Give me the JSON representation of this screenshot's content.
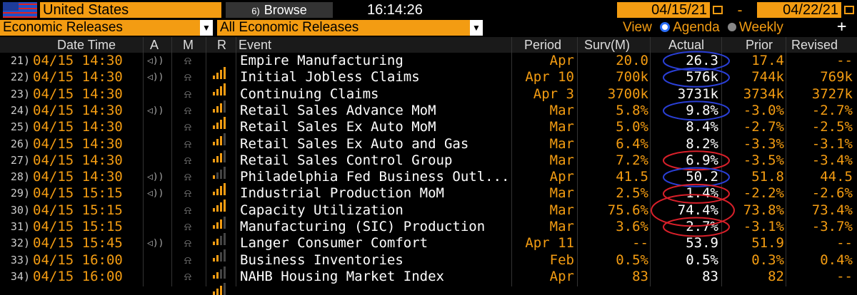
{
  "top": {
    "country": "United States",
    "browse_label": "Browse",
    "browse_icon": "6)",
    "time": "16:14:26",
    "date_from": "04/15/21",
    "date_sep": "-",
    "date_to": "04/22/21"
  },
  "filters": {
    "category": "Economic Releases",
    "scope": "All Economic Releases",
    "view_label": "View",
    "agenda_label": "Agenda",
    "weekly_label": "Weekly",
    "plus": "+"
  },
  "columns": {
    "datetime": "Date Time",
    "a": "A",
    "m": "M",
    "r": "R",
    "event": "Event",
    "period": "Period",
    "surv": "Surv(M)",
    "actual": "Actual",
    "prior": "Prior",
    "revised": "Revised"
  },
  "colors": {
    "accent": "#f39c12",
    "circle_blue": "#2a3fd6",
    "circle_red": "#d8202a"
  },
  "rows": [
    {
      "num": "21)",
      "datetime": "04/15 14:30",
      "alert": true,
      "rel": 4,
      "event": "Empire Manufacturing",
      "period": "Apr",
      "surv": "20.0",
      "actual": "26.3",
      "prior": "17.4",
      "revised": "--",
      "circle": "blue"
    },
    {
      "num": "22)",
      "datetime": "04/15 14:30",
      "alert": true,
      "rel": 4,
      "event": "Initial Jobless Claims",
      "period": "Apr 10",
      "surv": "700k",
      "actual": "576k",
      "prior": "744k",
      "revised": "769k",
      "circle": "blue"
    },
    {
      "num": "23)",
      "datetime": "04/15 14:30",
      "alert": false,
      "rel": 3,
      "event": "Continuing Claims",
      "period": "Apr 3",
      "surv": "3700k",
      "actual": "3731k",
      "prior": "3734k",
      "revised": "3727k",
      "circle": ""
    },
    {
      "num": "24)",
      "datetime": "04/15 14:30",
      "alert": true,
      "rel": 4,
      "event": "Retail Sales Advance MoM",
      "period": "Mar",
      "surv": "5.8%",
      "actual": "9.8%",
      "prior": "-3.0%",
      "revised": "-2.7%",
      "circle": "blue"
    },
    {
      "num": "25)",
      "datetime": "04/15 14:30",
      "alert": false,
      "rel": 3,
      "event": "Retail Sales Ex Auto MoM",
      "period": "Mar",
      "surv": "5.0%",
      "actual": "8.4%",
      "prior": "-2.7%",
      "revised": "-2.5%",
      "circle": ""
    },
    {
      "num": "26)",
      "datetime": "04/15 14:30",
      "alert": false,
      "rel": 3,
      "event": "Retail Sales Ex Auto and Gas",
      "period": "Mar",
      "surv": "6.4%",
      "actual": "8.2%",
      "prior": "-3.3%",
      "revised": "-3.1%",
      "circle": ""
    },
    {
      "num": "27)",
      "datetime": "04/15 14:30",
      "alert": false,
      "rel": 1,
      "event": "Retail Sales Control Group",
      "period": "Mar",
      "surv": "7.2%",
      "actual": "6.9%",
      "prior": "-3.5%",
      "revised": "-3.4%",
      "circle": "red"
    },
    {
      "num": "28)",
      "datetime": "04/15 14:30",
      "alert": true,
      "rel": 4,
      "event": "Philadelphia Fed Business Outl...",
      "period": "Apr",
      "surv": "41.5",
      "actual": "50.2",
      "prior": "51.8",
      "revised": "44.5",
      "circle": "blue"
    },
    {
      "num": "29)",
      "datetime": "04/15 15:15",
      "alert": true,
      "rel": 4,
      "event": "Industrial Production MoM",
      "period": "Mar",
      "surv": "2.5%",
      "actual": "1.4%",
      "prior": "-2.2%",
      "revised": "-2.6%",
      "circle": "red"
    },
    {
      "num": "30)",
      "datetime": "04/15 15:15",
      "alert": false,
      "rel": 3,
      "event": "Capacity Utilization",
      "period": "Mar",
      "surv": "75.6%",
      "actual": "74.4%",
      "prior": "73.8%",
      "revised": "73.4%",
      "circle": "red"
    },
    {
      "num": "31)",
      "datetime": "04/15 15:15",
      "alert": false,
      "rel": 2,
      "event": "Manufacturing (SIC) Production",
      "period": "Mar",
      "surv": "3.6%",
      "actual": "2.7%",
      "prior": "-3.1%",
      "revised": "-3.7%",
      "circle": "red"
    },
    {
      "num": "32)",
      "datetime": "04/15 15:45",
      "alert": true,
      "rel": 2,
      "event": "Langer Consumer Comfort",
      "period": "Apr 11",
      "surv": "--",
      "actual": "53.9",
      "prior": "51.9",
      "revised": "--",
      "circle": ""
    },
    {
      "num": "33)",
      "datetime": "04/15 16:00",
      "alert": false,
      "rel": 2,
      "event": "Business Inventories",
      "period": "Feb",
      "surv": "0.5%",
      "actual": "0.5%",
      "prior": "0.3%",
      "revised": "0.4%",
      "circle": ""
    },
    {
      "num": "34)",
      "datetime": "04/15 16:00",
      "alert": false,
      "rel": 3,
      "event": "NAHB Housing Market Index",
      "period": "Apr",
      "surv": "83",
      "actual": "83",
      "prior": "82",
      "revised": "--",
      "circle": ""
    }
  ]
}
